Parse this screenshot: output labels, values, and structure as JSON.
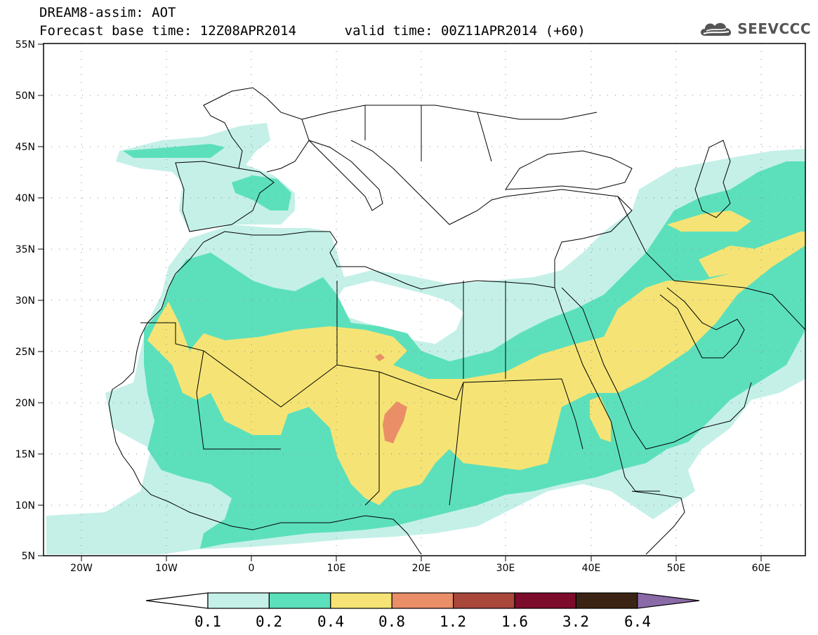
{
  "header": {
    "line1": "DREAM8-assim: AOT",
    "line2": "Forecast base time: 12Z08APR2014      valid time: 00Z11APR2014 (+60)"
  },
  "logo": {
    "text": "SEEVCCC",
    "icon": "cloud-icon",
    "color": "#555555"
  },
  "map": {
    "lon_range": [
      -25,
      65
    ],
    "lat_range": [
      5,
      55
    ],
    "lat_ticks": [
      "55N",
      "50N",
      "45N",
      "40N",
      "35N",
      "30N",
      "25N",
      "20N",
      "15N",
      "10N",
      "5N"
    ],
    "lon_ticks": [
      "20W",
      "10W",
      "0",
      "10E",
      "20E",
      "30E",
      "40E",
      "50E",
      "60E"
    ],
    "gridlines": "dotted"
  },
  "colorbar": {
    "levels": [
      "0.1",
      "0.2",
      "0.4",
      "0.8",
      "1.2",
      "1.6",
      "3.2",
      "6.4"
    ],
    "colors": [
      "#ffffff",
      "#c4f0e8",
      "#5ce0bc",
      "#f5e475",
      "#e98e67",
      "#a8473a",
      "#7d0b2c",
      "#3b2414",
      "#8b6aa8"
    ]
  }
}
